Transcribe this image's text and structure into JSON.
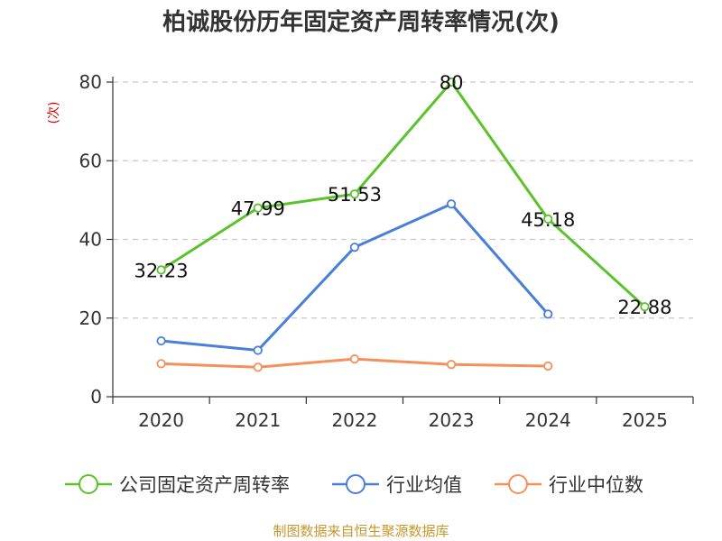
{
  "chart_data": {
    "type": "line",
    "title": "柏诚股份历年固定资产周转率情况(次)",
    "ylabel": "(次)",
    "categories": [
      "2020",
      "2021",
      "2022",
      "2023",
      "2024",
      "2025"
    ],
    "yticks": [
      "0",
      "20",
      "40",
      "60",
      "80"
    ],
    "ylim": [
      0,
      80
    ],
    "grid": "horizontal-dashed",
    "legend_position": "bottom",
    "series": [
      {
        "name": "公司固定资产周转率",
        "color": "#5bc22b",
        "values": [
          32.23,
          47.99,
          51.53,
          80,
          45.18,
          22.88
        ],
        "labels": [
          "32.23",
          "47.99",
          "51.53",
          "80",
          "45.18",
          "22.88"
        ]
      },
      {
        "name": "行业均值",
        "color": "#4a7fd9",
        "values": [
          14.2,
          11.8,
          38.0,
          49.0,
          21.0,
          null
        ]
      },
      {
        "name": "行业中位数",
        "color": "#f5905c",
        "values": [
          8.4,
          7.5,
          9.6,
          8.2,
          7.8,
          null
        ]
      }
    ],
    "source": "制图数据来自恒生聚源数据库"
  }
}
